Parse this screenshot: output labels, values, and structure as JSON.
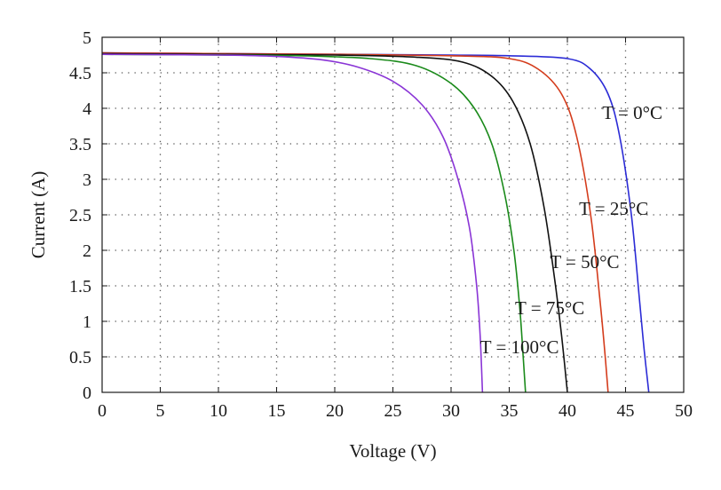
{
  "chart_data": {
    "type": "line",
    "title": "",
    "xlabel": "Voltage (V)",
    "ylabel": "Current (A)",
    "xlim": [
      0,
      50
    ],
    "ylim": [
      0,
      5
    ],
    "x_ticks": [
      0,
      5,
      10,
      15,
      20,
      25,
      30,
      35,
      40,
      45,
      50
    ],
    "y_ticks": [
      "0",
      "0.5",
      "1",
      "1.5",
      "2",
      "2.5",
      "3",
      "3.5",
      "4",
      "4.5",
      "5"
    ],
    "grid": true,
    "grid_style": "dotted",
    "legend": "none",
    "series": [
      {
        "name": "T = 0°C",
        "color": "#2b2bd6",
        "points": [
          [
            0,
            4.78
          ],
          [
            10,
            4.77
          ],
          [
            20,
            4.76
          ],
          [
            30,
            4.75
          ],
          [
            35,
            4.74
          ],
          [
            40,
            4.7
          ],
          [
            42,
            4.55
          ],
          [
            43.5,
            4.2
          ],
          [
            44.5,
            3.6
          ],
          [
            45.5,
            2.5
          ],
          [
            46.2,
            1.3
          ],
          [
            46.6,
            0.6
          ],
          [
            47,
            0
          ]
        ]
      },
      {
        "name": "T = 25°C",
        "color": "#d43c1c",
        "points": [
          [
            0,
            4.78
          ],
          [
            10,
            4.77
          ],
          [
            20,
            4.76
          ],
          [
            30,
            4.74
          ],
          [
            35,
            4.7
          ],
          [
            37.5,
            4.55
          ],
          [
            39.5,
            4.2
          ],
          [
            40.8,
            3.6
          ],
          [
            42,
            2.5
          ],
          [
            42.8,
            1.3
          ],
          [
            43.2,
            0.6
          ],
          [
            43.5,
            0
          ]
        ]
      },
      {
        "name": "T = 50°C",
        "color": "#111111",
        "points": [
          [
            0,
            4.77
          ],
          [
            10,
            4.76
          ],
          [
            20,
            4.75
          ],
          [
            27,
            4.72
          ],
          [
            31,
            4.65
          ],
          [
            33.5,
            4.45
          ],
          [
            35.3,
            4.1
          ],
          [
            36.8,
            3.5
          ],
          [
            38,
            2.6
          ],
          [
            38.9,
            1.6
          ],
          [
            39.5,
            0.8
          ],
          [
            40,
            0
          ]
        ]
      },
      {
        "name": "T = 75°C",
        "color": "#1a8a1a",
        "points": [
          [
            0,
            4.76
          ],
          [
            10,
            4.75
          ],
          [
            17,
            4.74
          ],
          [
            23,
            4.7
          ],
          [
            27,
            4.6
          ],
          [
            30,
            4.35
          ],
          [
            32,
            4.0
          ],
          [
            33.5,
            3.5
          ],
          [
            34.6,
            2.8
          ],
          [
            35.4,
            2.0
          ],
          [
            35.9,
            1.2
          ],
          [
            36.2,
            0.5
          ],
          [
            36.4,
            0
          ]
        ]
      },
      {
        "name": "T = 100°C",
        "color": "#8a35d6",
        "points": [
          [
            0,
            4.76
          ],
          [
            10,
            4.75
          ],
          [
            15,
            4.73
          ],
          [
            19,
            4.68
          ],
          [
            22,
            4.58
          ],
          [
            25,
            4.38
          ],
          [
            27.5,
            4.05
          ],
          [
            29.3,
            3.6
          ],
          [
            30.6,
            3.0
          ],
          [
            31.6,
            2.3
          ],
          [
            32.2,
            1.5
          ],
          [
            32.5,
            0.8
          ],
          [
            32.7,
            0
          ]
        ]
      }
    ],
    "annotations": [
      {
        "text": "T = 0°C",
        "x": 43,
        "y": 3.85
      },
      {
        "text": "T = 25°C",
        "x": 41,
        "y": 2.5
      },
      {
        "text": "T = 50°C",
        "x": 38.5,
        "y": 1.75
      },
      {
        "text": "T = 75°C",
        "x": 35.5,
        "y": 1.1
      },
      {
        "text": "T = 100°C",
        "x": 32.5,
        "y": 0.55
      }
    ]
  }
}
